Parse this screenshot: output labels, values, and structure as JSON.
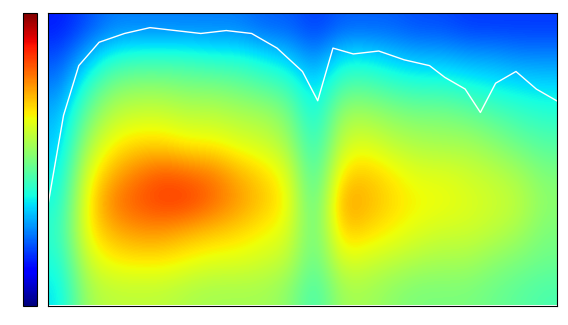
{
  "chart_data": {
    "type": "heatmap",
    "xlim": [
      0,
      100
    ],
    "ylim": [
      0,
      100
    ],
    "tick_labels": false,
    "color_range": [
      0,
      100
    ],
    "cells": [
      [
        35,
        55,
        58,
        58,
        58,
        56,
        55,
        55,
        55,
        52,
        42,
        55,
        55,
        52,
        50,
        50,
        50,
        48,
        46,
        44
      ],
      [
        38,
        60,
        65,
        66,
        66,
        64,
        62,
        62,
        60,
        58,
        45,
        62,
        60,
        58,
        56,
        55,
        55,
        52,
        50,
        48
      ],
      [
        40,
        65,
        72,
        75,
        75,
        72,
        70,
        68,
        65,
        62,
        45,
        70,
        68,
        65,
        62,
        60,
        60,
        58,
        55,
        50
      ],
      [
        38,
        65,
        78,
        82,
        85,
        85,
        80,
        75,
        70,
        65,
        42,
        75,
        72,
        68,
        65,
        64,
        62,
        60,
        58,
        52
      ],
      [
        35,
        62,
        72,
        78,
        82,
        80,
        78,
        72,
        68,
        62,
        40,
        68,
        70,
        66,
        62,
        62,
        60,
        58,
        55,
        50
      ],
      [
        32,
        55,
        65,
        68,
        68,
        65,
        65,
        62,
        60,
        55,
        38,
        60,
        62,
        58,
        56,
        55,
        55,
        52,
        48,
        45
      ],
      [
        30,
        48,
        58,
        60,
        60,
        58,
        58,
        56,
        55,
        50,
        35,
        55,
        55,
        52,
        50,
        50,
        48,
        45,
        42,
        40
      ],
      [
        25,
        40,
        50,
        52,
        52,
        50,
        50,
        48,
        45,
        42,
        32,
        45,
        45,
        42,
        40,
        40,
        38,
        36,
        35,
        34
      ],
      [
        20,
        30,
        38,
        40,
        40,
        40,
        38,
        38,
        35,
        32,
        25,
        35,
        35,
        32,
        30,
        30,
        28,
        28,
        26,
        26
      ],
      [
        15,
        20,
        25,
        25,
        25,
        25,
        25,
        25,
        22,
        22,
        18,
        22,
        22,
        22,
        20,
        20,
        18,
        18,
        18,
        18
      ]
    ],
    "series": [
      {
        "type": "line",
        "color": "#ffffff",
        "x": [
          0,
          3,
          6,
          10,
          15,
          20,
          25,
          30,
          35,
          40,
          45,
          50,
          53,
          56,
          60,
          65,
          70,
          75,
          78,
          82,
          85,
          88,
          92,
          96,
          100
        ],
        "values": [
          35,
          65,
          82,
          90,
          93,
          95,
          94,
          93,
          94,
          93,
          88,
          80,
          70,
          88,
          86,
          87,
          84,
          82,
          78,
          74,
          66,
          76,
          80,
          74,
          70
        ]
      }
    ]
  }
}
